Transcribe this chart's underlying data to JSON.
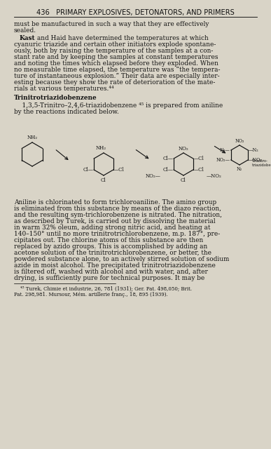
{
  "bg_color": "#d9d4c7",
  "text_color": "#111111",
  "title": "436   PRIMARY EXPLOSIVES, DETONATORS, AND PRIMERS",
  "p1_lines": [
    "must be manufactured in such a way that they are effectively",
    "sealed."
  ],
  "p2_bold": "Kast",
  "p2_rest_line1": " and Haid have determined the temperatures at which",
  "p2_lines": [
    "cyanuric triazide and certain other initiators explode spontane-",
    "ously, both by raising the temperature of the samples at a con-",
    "stant rate and by keeping the samples at constant temperatures",
    "and noting the times which elapsed before they exploded. When",
    "no measurable time elapsed, the temperature was “the tempera-",
    "ture of instantaneous explosion.” Their data are especially inter-",
    "esting because they show the rate of deterioration of the mate-",
    "rials at various temperatures.⁴⁴"
  ],
  "section": "Trinitrotriazidobenzene",
  "p3_lines": [
    "    1,3,5-Trinitro–2,4,6-triazidobenzene ⁴⁵ is prepared from aniline",
    "by the reactions indicated below."
  ],
  "p4_lines": [
    "Aniline is chlorinated to form trichloroaniline. The amino group",
    "is eliminated from this substance by means of the diazo reaction,",
    "and the resulting sym-trichlorobenzene is nitrated. The nitration,",
    "as described by Turek, is carried out by dissolving the material",
    "in warm 32% oleum, adding strong nitric acid, and heating at",
    "140–150° until no more trinitrotrichlorobenzene, m.p. 187°, pre-",
    "cipitates out. The chlorine atoms of this substance are then",
    "replaced by azido groups. This is accomplished by adding an",
    "acetone solution of the trinitrotrichlorobenzene, or better, the",
    "powdered substance alone, to an actively stirred solution of sodium",
    "azide in moist alcohol. The precipitated trinitrotriazidobenzene",
    "is filtered off, washed with alcohol and with water, and, after",
    "drying, is sufficiently pure for technical purposes. It may be"
  ],
  "fn1": "    ⁴⁵ Turek, Chimie et industrie, 26, 781 (1931); Ger. Pat. 498,050; Brit.",
  "fn2": "Pat. 298,981. Mursour, Mém. artillerie franç., 18, 895 (1939)."
}
